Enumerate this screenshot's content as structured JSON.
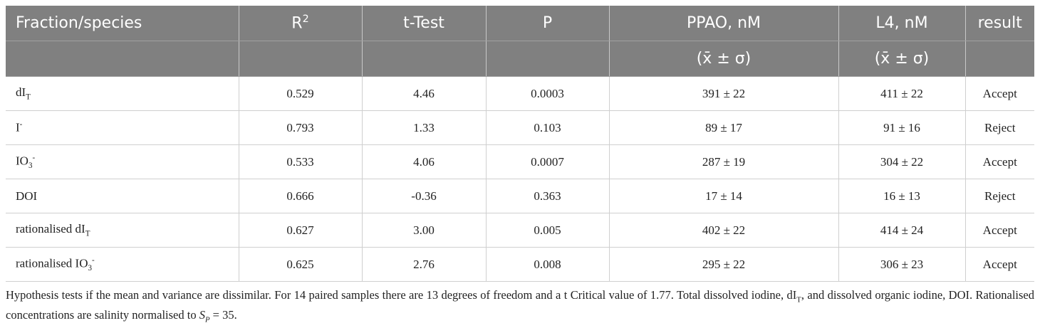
{
  "table": {
    "header": [
      [
        {
          "text": "Fraction/species"
        },
        {
          "text": "R",
          "sup": "2"
        },
        {
          "text": "t-Test"
        },
        {
          "text": "P"
        },
        {
          "text": "PPAO, nM"
        },
        {
          "text": "L4, nM"
        },
        {
          "text": "result"
        }
      ],
      [
        {
          "text": ""
        },
        {
          "text": ""
        },
        {
          "text": ""
        },
        {
          "text": ""
        },
        {
          "text": "(x̄ ± σ)"
        },
        {
          "text": "(x̄ ± σ)"
        },
        {
          "text": ""
        }
      ]
    ],
    "rows": [
      [
        {
          "text": "dI",
          "sub": "T"
        },
        {
          "text": "0.529"
        },
        {
          "text": "4.46"
        },
        {
          "text": "0.0003"
        },
        {
          "text": "391 ± 22"
        },
        {
          "text": "411 ± 22"
        },
        {
          "text": "Accept"
        }
      ],
      [
        {
          "text": "I",
          "sup": "-"
        },
        {
          "text": "0.793"
        },
        {
          "text": "1.33"
        },
        {
          "text": "0.103"
        },
        {
          "text": "89 ± 17"
        },
        {
          "text": "91 ± 16"
        },
        {
          "text": "Reject"
        }
      ],
      [
        {
          "text": "IO",
          "sub": "3",
          "sup": "-"
        },
        {
          "text": "0.533"
        },
        {
          "text": "4.06"
        },
        {
          "text": "0.0007"
        },
        {
          "text": "287 ± 19"
        },
        {
          "text": "304 ± 22"
        },
        {
          "text": "Accept"
        }
      ],
      [
        {
          "text": "DOI"
        },
        {
          "text": "0.666"
        },
        {
          "text": "-0.36"
        },
        {
          "text": "0.363"
        },
        {
          "text": "17 ± 14"
        },
        {
          "text": "16 ± 13"
        },
        {
          "text": "Reject"
        }
      ],
      [
        {
          "text": "rationalised dI",
          "sub": "T"
        },
        {
          "text": "0.627"
        },
        {
          "text": "3.00"
        },
        {
          "text": "0.005"
        },
        {
          "text": "402 ± 22"
        },
        {
          "text": "414 ± 24"
        },
        {
          "text": "Accept"
        }
      ],
      [
        {
          "text": "rationalised IO",
          "sub": "3",
          "sup": "-"
        },
        {
          "text": "0.625"
        },
        {
          "text": "2.76"
        },
        {
          "text": "0.008"
        },
        {
          "text": "295 ± 22"
        },
        {
          "text": "306 ± 23"
        },
        {
          "text": "Accept"
        }
      ]
    ]
  },
  "caption": [
    {
      "text": "Hypothesis tests if the mean and variance are dissimilar. For 14 paired samples there are 13 degrees of freedom and a t Critical value of 1.77. Total dissolved iodine, dI"
    },
    {
      "text": "T",
      "style": "sub"
    },
    {
      "text": ", and dissolved organic iodine, DOI. Rationalised concentrations are salinity normalised to "
    },
    {
      "text": "S",
      "style": "italic"
    },
    {
      "text": "P",
      "style": "sub"
    },
    {
      "text": " = 35."
    }
  ]
}
